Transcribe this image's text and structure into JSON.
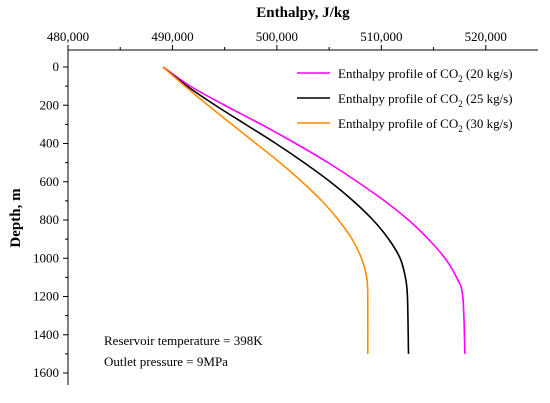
{
  "chart_data": {
    "type": "line",
    "title": "",
    "xlabel": "Enthalpy, J/kg",
    "ylabel": "Depth, m",
    "x_axis_position": "top",
    "y_axis_inverted": true,
    "xlim": [
      480000,
      525000
    ],
    "ylim": [
      0,
      1700
    ],
    "x_ticks": [
      480000,
      490000,
      500000,
      510000,
      520000
    ],
    "x_tick_labels": [
      "480,000",
      "490,000",
      "500,000",
      "510,000",
      "520,000"
    ],
    "y_ticks": [
      0,
      200,
      400,
      600,
      800,
      1000,
      1200,
      1400,
      1600
    ],
    "y_tick_labels": [
      "0",
      "200",
      "400",
      "600",
      "800",
      "1000",
      "1200",
      "1400",
      "1600"
    ],
    "grid": false,
    "legend_position": "top-right",
    "series": [
      {
        "name": "Enthalpy profile of CO",
        "name_subscript": "2",
        "name_suffix": " (20 kg/s)",
        "color": "#ff00ff",
        "x": [
          489100,
          491700,
          495000,
          498500,
          501800,
          504900,
          507700,
          510300,
          512600,
          514500,
          516100,
          517200,
          517800,
          518000
        ],
        "y": [
          0,
          100,
          200,
          300,
          400,
          500,
          600,
          700,
          800,
          900,
          1000,
          1100,
          1200,
          1500
        ]
      },
      {
        "name": "Enthalpy profile of CO",
        "name_subscript": "2",
        "name_suffix": " (25 kg/s)",
        "color": "#000000",
        "x": [
          489100,
          491400,
          494100,
          497000,
          499900,
          502600,
          505100,
          507300,
          509200,
          510700,
          511800,
          512300,
          512500,
          512600
        ],
        "y": [
          0,
          100,
          200,
          300,
          400,
          500,
          600,
          700,
          800,
          900,
          1000,
          1100,
          1200,
          1500
        ]
      },
      {
        "name": "Enthalpy profile of CO",
        "name_subscript": "2",
        "name_suffix": " (30 kg/s)",
        "color": "#ff8c00",
        "x": [
          489100,
          491200,
          493400,
          495700,
          498000,
          500300,
          502400,
          504300,
          505900,
          507200,
          508100,
          508600,
          508700,
          508700
        ],
        "y": [
          0,
          100,
          200,
          300,
          400,
          500,
          600,
          700,
          800,
          900,
          1000,
          1100,
          1200,
          1500
        ]
      }
    ],
    "annotations": [
      "Reservoir temperature = 398K",
      "Outlet pressure = 9MPa"
    ]
  }
}
